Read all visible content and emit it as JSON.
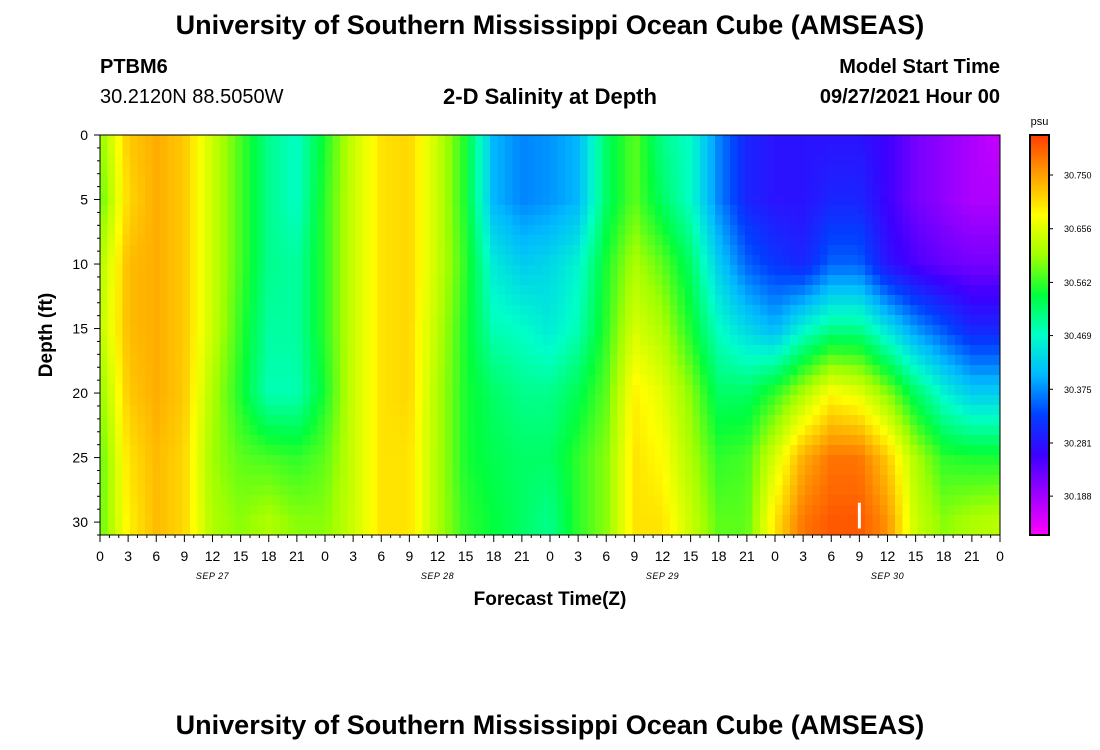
{
  "header": {
    "title_top": "University of Southern Mississippi Ocean Cube (AMSEAS)",
    "title_bottom": "University of Southern Mississippi Ocean Cube (AMSEAS)",
    "station_id": "PTBM6",
    "station_coords": "30.2120N  88.5050W",
    "plot_title": "2-D Salinity at Depth",
    "model_start_label": "Model Start Time",
    "model_start_value": "09/27/2021 Hour 00"
  },
  "colors": {
    "background": "#ffffff",
    "text": "#000000",
    "marker": "#ffffff"
  },
  "chart_data": {
    "type": "heatmap",
    "title": "2-D Salinity at Depth",
    "xlabel": "Forecast Time(Z)",
    "ylabel": "Depth (ft)",
    "x_ticks": [
      "0",
      "3",
      "6",
      "9",
      "12",
      "15",
      "18",
      "21",
      "0",
      "3",
      "6",
      "9",
      "12",
      "15",
      "18",
      "21",
      "0",
      "3",
      "6",
      "9",
      "12",
      "15",
      "18",
      "21",
      "0",
      "3",
      "6",
      "9",
      "12",
      "15",
      "18",
      "21",
      "0"
    ],
    "x_range_hours": [
      0,
      96
    ],
    "date_labels": [
      {
        "hour": 12,
        "label": "SEP 27"
      },
      {
        "hour": 36,
        "label": "SEP 28"
      },
      {
        "hour": 60,
        "label": "SEP 29"
      },
      {
        "hour": 84,
        "label": "SEP 30"
      }
    ],
    "y_ticks": [
      0,
      5,
      10,
      15,
      20,
      25,
      30
    ],
    "ylim": [
      0,
      31
    ],
    "y_inverted": true,
    "colorbar": {
      "unit": "psu",
      "range": [
        30.12,
        30.82
      ],
      "tick_labels": [
        "30.750",
        "30.656",
        "30.562",
        "30.469",
        "30.375",
        "30.281",
        "30.188"
      ],
      "tick_values": [
        30.75,
        30.656,
        30.562,
        30.469,
        30.375,
        30.281,
        30.188
      ],
      "palette": [
        "#ff00ff",
        "#a000ff",
        "#3c00ff",
        "#0040ff",
        "#00b8ff",
        "#00ffc8",
        "#00ff3c",
        "#a0ff00",
        "#ffff00",
        "#ffa000",
        "#ff3c00"
      ]
    },
    "salinity_field": {
      "times_hours": [
        0,
        3,
        6,
        9,
        12,
        15,
        18,
        21,
        24,
        27,
        30,
        33,
        36,
        39,
        42,
        45,
        48,
        51,
        54,
        57,
        60,
        63,
        66,
        69,
        72,
        75,
        78,
        81,
        84,
        87,
        90,
        93,
        96
      ],
      "depths_ft": [
        0,
        5,
        10,
        15,
        20,
        25,
        30
      ],
      "values_psu": [
        [
          30.6,
          30.58,
          30.62,
          30.63,
          30.6,
          30.58,
          30.58
        ],
        [
          30.72,
          30.71,
          30.73,
          30.73,
          30.72,
          30.7,
          30.69
        ],
        [
          30.74,
          30.74,
          30.74,
          30.74,
          30.74,
          30.73,
          30.73
        ],
        [
          30.72,
          30.72,
          30.72,
          30.72,
          30.72,
          30.71,
          30.71
        ],
        [
          30.64,
          30.64,
          30.64,
          30.64,
          30.62,
          30.61,
          30.62
        ],
        [
          30.57,
          30.57,
          30.57,
          30.56,
          30.55,
          30.58,
          30.6
        ],
        [
          30.5,
          30.5,
          30.5,
          30.49,
          30.48,
          30.57,
          30.62
        ],
        [
          30.47,
          30.47,
          30.49,
          30.49,
          30.48,
          30.56,
          30.6
        ],
        [
          30.55,
          30.56,
          30.56,
          30.56,
          30.55,
          30.58,
          30.6
        ],
        [
          30.64,
          30.64,
          30.64,
          30.64,
          30.64,
          30.64,
          30.64
        ],
        [
          30.7,
          30.7,
          30.7,
          30.7,
          30.7,
          30.7,
          30.7
        ],
        [
          30.71,
          30.71,
          30.71,
          30.71,
          30.71,
          30.7,
          30.7
        ],
        [
          30.64,
          30.64,
          30.64,
          30.63,
          30.62,
          30.62,
          30.62
        ],
        [
          30.55,
          30.55,
          30.56,
          30.55,
          30.55,
          30.55,
          30.56
        ],
        [
          30.4,
          30.4,
          30.45,
          30.48,
          30.52,
          30.53,
          30.54
        ],
        [
          30.37,
          30.37,
          30.42,
          30.47,
          30.5,
          30.52,
          30.52
        ],
        [
          30.38,
          30.38,
          30.43,
          30.45,
          30.5,
          30.52,
          30.5
        ],
        [
          30.4,
          30.4,
          30.46,
          30.48,
          30.53,
          30.56,
          30.56
        ],
        [
          30.52,
          30.52,
          30.55,
          30.56,
          30.58,
          30.6,
          30.6
        ],
        [
          30.58,
          30.58,
          30.62,
          30.65,
          30.69,
          30.7,
          30.7
        ],
        [
          30.5,
          30.52,
          30.58,
          30.62,
          30.66,
          30.68,
          30.7
        ],
        [
          30.47,
          30.47,
          30.52,
          30.55,
          30.6,
          30.62,
          30.64
        ],
        [
          30.37,
          30.37,
          30.42,
          30.47,
          30.52,
          30.56,
          30.58
        ],
        [
          30.3,
          30.3,
          30.35,
          30.43,
          30.52,
          30.57,
          30.58
        ],
        [
          30.28,
          30.28,
          30.32,
          30.4,
          30.56,
          30.65,
          30.7
        ],
        [
          30.28,
          30.28,
          30.3,
          30.46,
          30.62,
          30.74,
          30.78
        ],
        [
          30.28,
          30.3,
          30.35,
          30.5,
          30.68,
          30.78,
          30.8
        ],
        [
          30.28,
          30.3,
          30.35,
          30.5,
          30.66,
          30.78,
          30.8
        ],
        [
          30.26,
          30.26,
          30.28,
          30.44,
          30.6,
          30.72,
          30.76
        ],
        [
          30.22,
          30.22,
          30.25,
          30.38,
          30.52,
          30.62,
          30.64
        ],
        [
          30.2,
          30.2,
          30.23,
          30.34,
          30.46,
          30.56,
          30.6
        ],
        [
          30.18,
          30.18,
          30.22,
          30.3,
          30.42,
          30.55,
          30.62
        ],
        [
          30.16,
          30.18,
          30.22,
          30.3,
          30.42,
          30.55,
          30.63
        ]
      ]
    },
    "marker": {
      "hour": 81,
      "depth_range_ft": [
        28.5,
        30.5
      ]
    }
  }
}
